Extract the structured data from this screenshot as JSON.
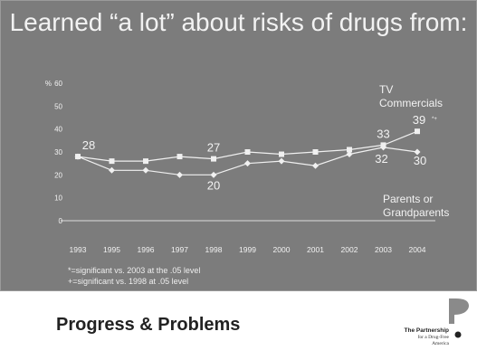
{
  "slide": {
    "title": "Learned “a lot” about risks of drugs from:",
    "footnotes": [
      "*=significant vs. 2003 at the .05 level",
      "+=significant vs. 1998 at .05 level"
    ],
    "footer_title": "Progress & Problems",
    "logo": {
      "name": "The Partnership",
      "subtitle": "for a Drug-Free\nAmerica"
    }
  },
  "colors": {
    "panel": "#7c7c7c",
    "text": "#f2f2f2",
    "series": "#f0f0f0",
    "logo_p": "#8a8a8a"
  },
  "chart_data": {
    "type": "line",
    "y_unit_label": "%",
    "ylim": [
      0,
      60
    ],
    "yticks": [
      0,
      10,
      20,
      30,
      40,
      50,
      60
    ],
    "categories": [
      "1993",
      "1995",
      "1996",
      "1997",
      "1998",
      "1999",
      "2000",
      "2001",
      "2002",
      "2003",
      "2004"
    ],
    "series": [
      {
        "name": "TV Commercials",
        "values": [
          28,
          26,
          26,
          28,
          27,
          30,
          29,
          30,
          31,
          33,
          39
        ],
        "labeled": {
          "1993": "28",
          "1998": "27",
          "2003": "33",
          "2004": "39"
        },
        "markers": {
          "2004": "*+"
        }
      },
      {
        "name": "Parents or Grandparents",
        "values": [
          28,
          22,
          22,
          20,
          20,
          25,
          26,
          24,
          29,
          32,
          30
        ],
        "labeled": {
          "1998": "20",
          "2003": "32",
          "2004": "30"
        }
      }
    ],
    "legend": [
      "TV Commercials",
      "Parents or Grandparents"
    ],
    "legend_placement": "right"
  }
}
